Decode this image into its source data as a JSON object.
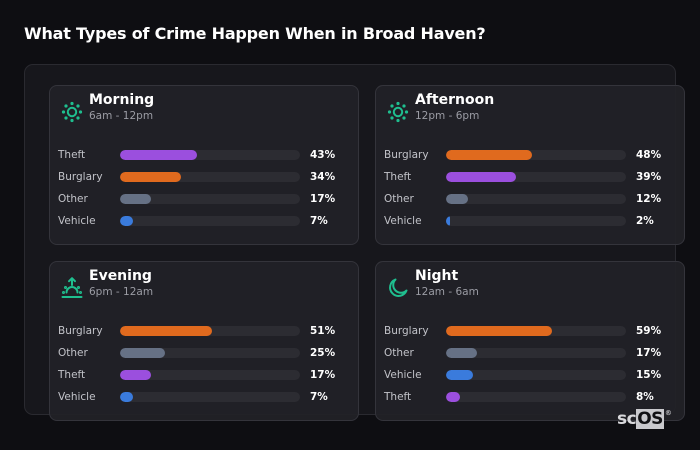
{
  "header": {
    "title": "What Types of Crime Happen When in Broad Haven?"
  },
  "colors": {
    "accent_icon": "#1fbf8f",
    "Theft": "#9b4fde",
    "Burglary": "#e06a1e",
    "Other": "#667185",
    "Vehicle": "#3a7bdc",
    "track": "#2c2c32"
  },
  "cards": [
    {
      "icon": "sun-icon",
      "title": "Morning",
      "subtitle": "6am - 12pm",
      "rows": [
        {
          "label": "Theft",
          "value": 43,
          "display": "43%"
        },
        {
          "label": "Burglary",
          "value": 34,
          "display": "34%"
        },
        {
          "label": "Other",
          "value": 17,
          "display": "17%"
        },
        {
          "label": "Vehicle",
          "value": 7,
          "display": "7%"
        }
      ]
    },
    {
      "icon": "sun-icon",
      "title": "Afternoon",
      "subtitle": "12pm - 6pm",
      "rows": [
        {
          "label": "Burglary",
          "value": 48,
          "display": "48%"
        },
        {
          "label": "Theft",
          "value": 39,
          "display": "39%"
        },
        {
          "label": "Other",
          "value": 12,
          "display": "12%"
        },
        {
          "label": "Vehicle",
          "value": 2,
          "display": "2%"
        }
      ]
    },
    {
      "icon": "sunset-icon",
      "title": "Evening",
      "subtitle": "6pm - 12am",
      "rows": [
        {
          "label": "Burglary",
          "value": 51,
          "display": "51%"
        },
        {
          "label": "Other",
          "value": 25,
          "display": "25%"
        },
        {
          "label": "Theft",
          "value": 17,
          "display": "17%"
        },
        {
          "label": "Vehicle",
          "value": 7,
          "display": "7%"
        }
      ]
    },
    {
      "icon": "moon-icon",
      "title": "Night",
      "subtitle": "12am - 6am",
      "rows": [
        {
          "label": "Burglary",
          "value": 59,
          "display": "59%"
        },
        {
          "label": "Other",
          "value": 17,
          "display": "17%"
        },
        {
          "label": "Vehicle",
          "value": 15,
          "display": "15%"
        },
        {
          "label": "Theft",
          "value": 8,
          "display": "8%"
        }
      ]
    }
  ],
  "logo": {
    "sc": "sc",
    "os": "OS",
    "reg": "®"
  },
  "chart_data": {
    "type": "bar",
    "orientation": "horizontal",
    "title": "What Types of Crime Happen When in Broad Haven?",
    "xlim": [
      0,
      100
    ],
    "unit": "%",
    "grid": false,
    "panels": [
      {
        "title": "Morning",
        "subtitle": "6am - 12pm",
        "categories": [
          "Theft",
          "Burglary",
          "Other",
          "Vehicle"
        ],
        "values": [
          43,
          34,
          17,
          7
        ]
      },
      {
        "title": "Afternoon",
        "subtitle": "12pm - 6pm",
        "categories": [
          "Burglary",
          "Theft",
          "Other",
          "Vehicle"
        ],
        "values": [
          48,
          39,
          12,
          2
        ]
      },
      {
        "title": "Evening",
        "subtitle": "6pm - 12am",
        "categories": [
          "Burglary",
          "Other",
          "Theft",
          "Vehicle"
        ],
        "values": [
          51,
          25,
          17,
          7
        ]
      },
      {
        "title": "Night",
        "subtitle": "12am - 6am",
        "categories": [
          "Burglary",
          "Other",
          "Vehicle",
          "Theft"
        ],
        "values": [
          59,
          17,
          15,
          8
        ]
      }
    ]
  }
}
